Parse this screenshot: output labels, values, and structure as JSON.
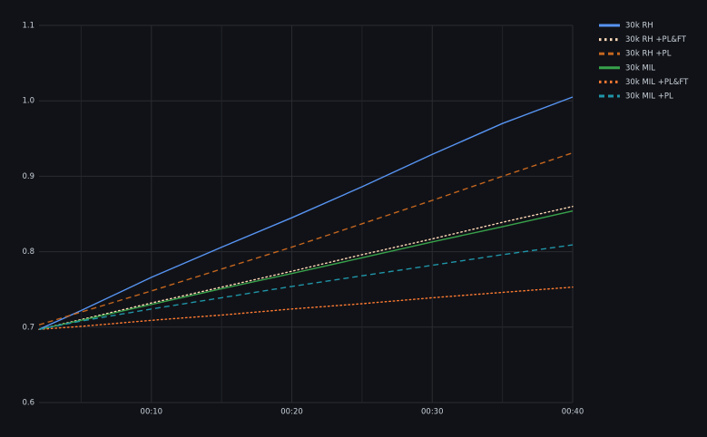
{
  "chart_data": {
    "type": "line",
    "x": [
      2,
      5,
      10,
      15,
      20,
      25,
      30,
      35,
      40
    ],
    "xlim": [
      2,
      40
    ],
    "xticks": [
      {
        "value": 10,
        "label": "00:10"
      },
      {
        "value": 20,
        "label": "00:20"
      },
      {
        "value": 30,
        "label": "00:30"
      },
      {
        "value": 40,
        "label": "00:40"
      }
    ],
    "minor_xgrid": [
      5,
      15,
      25,
      35
    ],
    "ylim": [
      0.6,
      1.1
    ],
    "yticks": [
      0.6,
      0.7,
      0.8,
      0.9,
      {
        "value": 1,
        "label": "1.0"
      },
      1.1
    ],
    "grid": true,
    "legend": "right",
    "series": [
      {
        "name": "30k RH",
        "color": "#5794f2",
        "dash": "solid",
        "values": [
          0.697,
          0.722,
          0.766,
          0.806,
          0.845,
          0.886,
          0.929,
          0.97,
          1.005
        ]
      },
      {
        "name": "30k RH +PL&FT",
        "color": "#ffd9b8",
        "dash": "dotted",
        "values": [
          0.697,
          0.71,
          0.732,
          0.753,
          0.774,
          0.796,
          0.817,
          0.839,
          0.86
        ]
      },
      {
        "name": "30k RH +PL",
        "color": "#c4661f",
        "dash": "dashed",
        "values": [
          0.703,
          0.72,
          0.748,
          0.777,
          0.806,
          0.837,
          0.868,
          0.9,
          0.931
        ]
      },
      {
        "name": "30k MIL",
        "color": "#37a24b",
        "dash": "solid",
        "values": [
          0.697,
          0.709,
          0.73,
          0.751,
          0.771,
          0.792,
          0.813,
          0.833,
          0.854
        ]
      },
      {
        "name": "30k MIL +PL&FT",
        "color": "#ff7b32",
        "dash": "dotted",
        "values": [
          0.697,
          0.701,
          0.709,
          0.716,
          0.724,
          0.731,
          0.739,
          0.746,
          0.753
        ]
      },
      {
        "name": "30k MIL +PL",
        "color": "#1f95a8",
        "dash": "dashed",
        "values": [
          0.697,
          0.708,
          0.724,
          0.739,
          0.754,
          0.768,
          0.782,
          0.796,
          0.809
        ]
      }
    ]
  }
}
